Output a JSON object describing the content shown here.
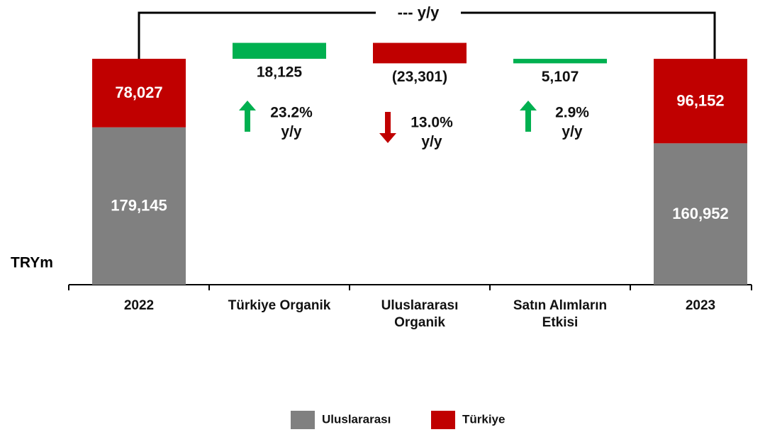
{
  "chart_data": {
    "type": "waterfall",
    "bracket_label": "--- y/y",
    "y_label": "TRYm",
    "categories": [
      "2022",
      "Türkiye Organik",
      "Uluslararası Organik",
      "Satın Alımların Etkisi",
      "2023"
    ],
    "series": [
      {
        "name": "Uluslararası",
        "color": "#808080",
        "values": [
          179145,
          null,
          null,
          null,
          160952
        ],
        "value_labels": [
          "179,145",
          null,
          null,
          null,
          "160,952"
        ]
      },
      {
        "name": "Türkiye",
        "color": "#c00000",
        "values": [
          78027,
          null,
          null,
          null,
          96152
        ],
        "value_labels": [
          "78,027",
          null,
          null,
          null,
          "96,152"
        ]
      }
    ],
    "changes": {
      "values": [
        null,
        18125,
        -23301,
        5107,
        null
      ],
      "value_labels": [
        null,
        "18,125",
        "(23,301)",
        "5,107",
        null
      ],
      "increase_color": "#00b050",
      "decrease_color": "#c00000"
    },
    "growth": {
      "values": [
        null,
        23.2,
        13.0,
        2.9,
        null
      ],
      "value_labels": [
        null,
        "23.2%",
        "13.0%",
        "2.9%",
        null
      ],
      "unit": "y/y"
    }
  }
}
